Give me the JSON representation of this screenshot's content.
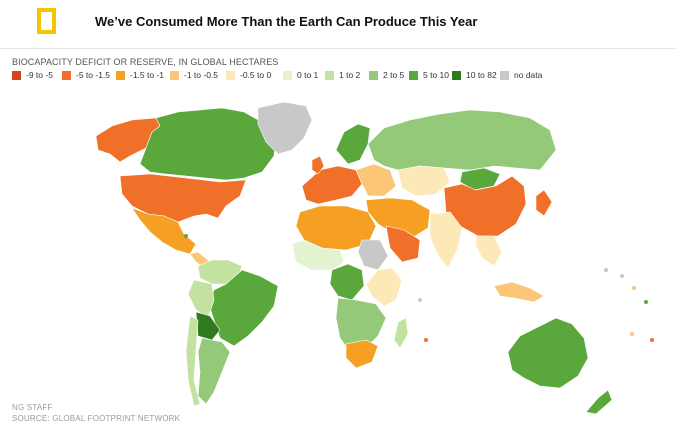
{
  "header": {
    "title": "We’ve Consumed More Than the Earth Can Produce This Year",
    "logo_color": "#f5c500"
  },
  "legend": {
    "title": "BIOCAPACITY DEFICIT OR RESERVE, IN GLOBAL HECTARES",
    "items": [
      {
        "label": "-9 to -5",
        "color": "#d4421e"
      },
      {
        "label": "-5 to -1.5",
        "color": "#f0702a"
      },
      {
        "label": "-1.5 to -1",
        "color": "#f5a023"
      },
      {
        "label": "-1 to -0.5",
        "color": "#fbc777"
      },
      {
        "label": "-0.5 to 0",
        "color": "#fde8b8"
      },
      {
        "label": "0 to 1",
        "color": "#e3f2cf"
      },
      {
        "label": "1 to 2",
        "color": "#c3e2a0"
      },
      {
        "label": "2 to 5",
        "color": "#95c97a"
      },
      {
        "label": "5 to 10",
        "color": "#5aa83c"
      },
      {
        "label": "10 to 82",
        "color": "#2f7a1e"
      },
      {
        "label": "no data",
        "color": "#c8c8c8"
      }
    ]
  },
  "credits": {
    "staff": "NG STAFF",
    "source": "SOURCE: GLOBAL FOOTPRINT NETWORK"
  }
}
